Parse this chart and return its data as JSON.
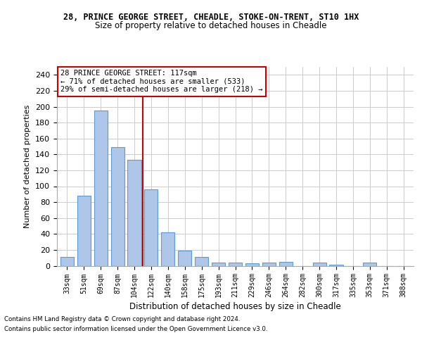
{
  "title": "28, PRINCE GEORGE STREET, CHEADLE, STOKE-ON-TRENT, ST10 1HX",
  "subtitle": "Size of property relative to detached houses in Cheadle",
  "xlabel": "Distribution of detached houses by size in Cheadle",
  "ylabel": "Number of detached properties",
  "categories": [
    "33sqm",
    "51sqm",
    "69sqm",
    "87sqm",
    "104sqm",
    "122sqm",
    "140sqm",
    "158sqm",
    "175sqm",
    "193sqm",
    "211sqm",
    "229sqm",
    "246sqm",
    "264sqm",
    "282sqm",
    "300sqm",
    "317sqm",
    "335sqm",
    "353sqm",
    "371sqm",
    "388sqm"
  ],
  "values": [
    11,
    88,
    195,
    149,
    133,
    96,
    42,
    19,
    11,
    4,
    4,
    3,
    4,
    5,
    0,
    4,
    1,
    0,
    4,
    0,
    0
  ],
  "bar_color": "#aec6e8",
  "bar_edge_color": "#5b9bd5",
  "vline_x": 4.5,
  "vline_color": "#cc0000",
  "annotation_lines": [
    "28 PRINCE GEORGE STREET: 117sqm",
    "← 71% of detached houses are smaller (533)",
    "29% of semi-detached houses are larger (218) →"
  ],
  "annotation_box_edge": "#cc0000",
  "ylim": [
    0,
    250
  ],
  "yticks": [
    0,
    20,
    40,
    60,
    80,
    100,
    120,
    140,
    160,
    180,
    200,
    220,
    240
  ],
  "footer_line1": "Contains HM Land Registry data © Crown copyright and database right 2024.",
  "footer_line2": "Contains public sector information licensed under the Open Government Licence v3.0.",
  "bg_color": "#ffffff",
  "grid_color": "#cccccc",
  "title_fontsize": 8.5,
  "subtitle_fontsize": 8.5,
  "bar_width": 0.8
}
